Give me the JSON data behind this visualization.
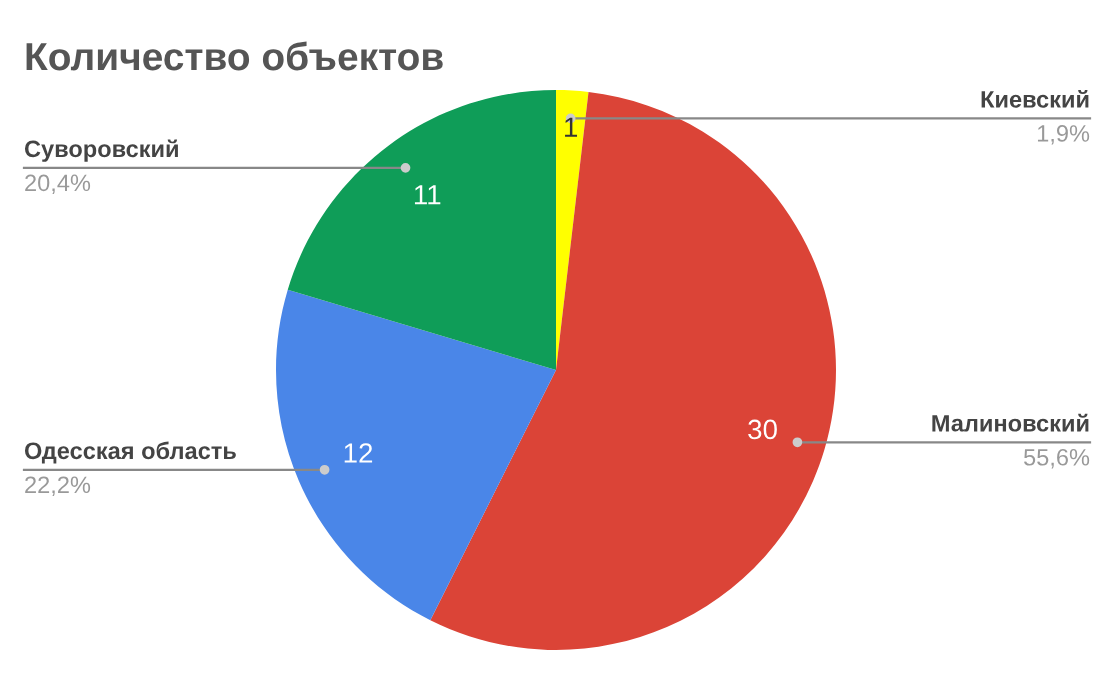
{
  "chart_data": {
    "type": "pie",
    "title": "Количество объектов",
    "categories": [
      "Киевский",
      "Малиновский",
      "Одесская область",
      "Суворовский"
    ],
    "values": [
      1,
      30,
      12,
      11
    ],
    "colors": [
      "#ffff00",
      "#db4437",
      "#4a86e8",
      "#0f9d58"
    ],
    "data_labels": true,
    "annotations": [
      "1,9%",
      "55,6%",
      "22,2%",
      "20,4%"
    ]
  }
}
